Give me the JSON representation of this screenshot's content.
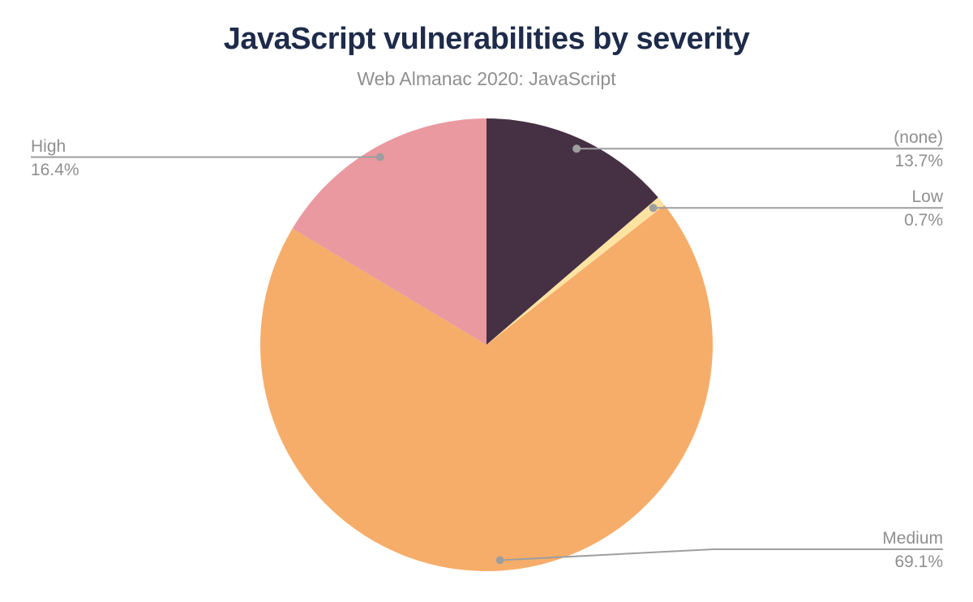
{
  "chart_data": {
    "type": "pie",
    "title": "JavaScript vulnerabilities by severity",
    "subtitle": "Web Almanac 2020: JavaScript",
    "direction": "clockwise",
    "start_angle_deg": 0,
    "legend_position": "callout-labels",
    "slices": [
      {
        "label": "(none)",
        "value": 13.7,
        "value_label": "13.7%",
        "color": "#463043"
      },
      {
        "label": "Low",
        "value": 0.7,
        "value_label": "0.7%",
        "color": "#fce3a2"
      },
      {
        "label": "Medium",
        "value": 69.1,
        "value_label": "69.1%",
        "color": "#f6ad69"
      },
      {
        "label": "High",
        "value": 16.4,
        "value_label": "16.4%",
        "color": "#e9999f"
      }
    ],
    "title_color": "#1e2b4a",
    "subtitle_color": "#8f8f8f",
    "label_color": "#8f8f8f",
    "leader_line_color": "#9e9e9e",
    "background_color": "#ffffff"
  }
}
